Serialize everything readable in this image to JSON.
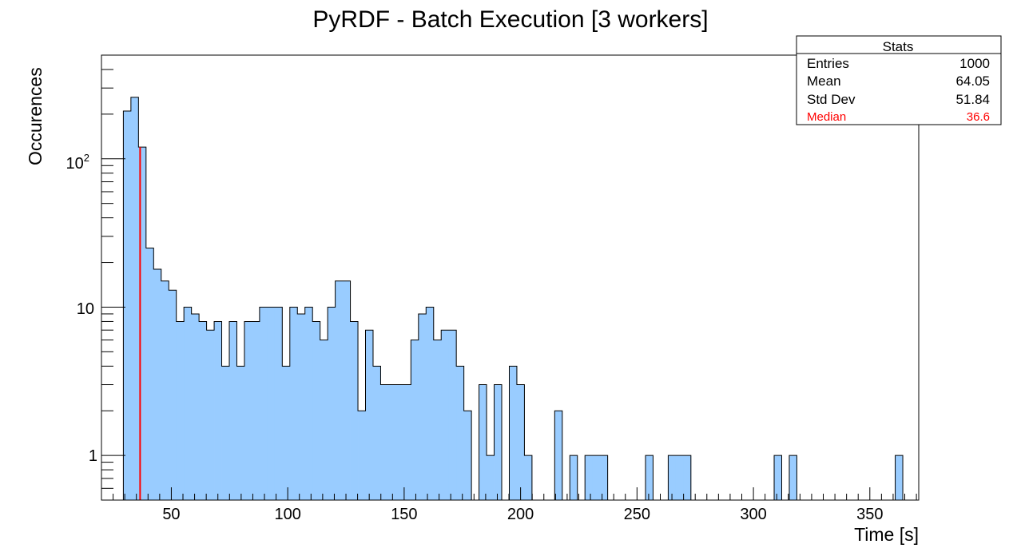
{
  "chart_data": {
    "type": "bar",
    "subtype": "histogram",
    "title": "PyRDF - Batch Execution [3 workers]",
    "xlabel": "Time [s]",
    "ylabel": "Occurences",
    "xlim": [
      20,
      371
    ],
    "ylim": [
      0.5,
      500
    ],
    "y_scale": "log",
    "bin_width": 3.25,
    "x_ticks": [
      50,
      100,
      150,
      200,
      250,
      300,
      350
    ],
    "x_tick_labels": [
      "50",
      "100",
      "150",
      "200",
      "250",
      "300",
      "350"
    ],
    "y_tick_labels": {
      "1": "1",
      "10": "10",
      "100": "10",
      "100_sup": "2"
    },
    "bins_x_start": [
      29.4,
      32.65,
      35.9,
      39.15,
      42.4,
      45.65,
      48.9,
      52.15,
      55.4,
      58.65,
      61.9,
      65.15,
      68.4,
      71.65,
      74.9,
      78.15,
      81.4,
      84.65,
      87.9,
      91.15,
      94.4,
      97.65,
      100.9,
      104.15,
      107.4,
      110.65,
      113.9,
      117.15,
      120.4,
      123.65,
      126.9,
      130.15,
      133.4,
      136.65,
      139.9,
      143.15,
      146.4,
      149.65,
      152.9,
      156.15,
      159.4,
      162.65,
      165.9,
      169.15,
      172.4,
      175.65,
      178.9,
      182.15,
      185.4,
      188.65,
      191.9,
      195.15,
      198.4,
      201.65,
      204.9,
      208.15,
      211.4,
      214.65,
      217.9,
      221.15,
      224.4,
      227.65,
      230.9,
      234.15,
      237.4,
      240.65,
      243.9,
      247.15,
      250.4,
      253.65,
      256.9,
      260.15,
      263.4,
      266.65,
      269.9,
      273.15,
      276.4,
      279.65,
      282.9,
      286.15,
      289.4,
      292.65,
      295.9,
      299.15,
      302.4,
      305.65,
      308.9,
      312.15,
      315.4,
      318.65,
      321.9,
      325.15,
      328.4,
      331.65,
      334.9,
      338.15,
      341.4,
      344.65,
      347.9,
      351.15,
      354.4,
      357.65,
      360.9
    ],
    "values": [
      210,
      260,
      120,
      25,
      18,
      15,
      13,
      8,
      10,
      9,
      8,
      7,
      8,
      4,
      8,
      4,
      8,
      8,
      10,
      10,
      10,
      4,
      10,
      9,
      10,
      8,
      6,
      10,
      15,
      15,
      8,
      2,
      7,
      4,
      3,
      3,
      3,
      3,
      6,
      9,
      10,
      6,
      7,
      7,
      4,
      2,
      0,
      3,
      1,
      3,
      0,
      4,
      3,
      1,
      0,
      0,
      0,
      2,
      0,
      1,
      0,
      1,
      1,
      1,
      0,
      0,
      0,
      0,
      0,
      1,
      0,
      0,
      1,
      1,
      1,
      0,
      0,
      0,
      0,
      0,
      0,
      0,
      0,
      0,
      0,
      0,
      1,
      0,
      1,
      0,
      0,
      0,
      0,
      0,
      0,
      0,
      0,
      0,
      0,
      0,
      0,
      0,
      1
    ],
    "median_value": 36.6,
    "fill_color": "#99ccff",
    "line_color": "#000000",
    "median_line_color": "#ff0000"
  },
  "stats": {
    "title": "Stats",
    "entries_label": "Entries",
    "entries_value": "1000",
    "mean_label": "Mean",
    "mean_value": "64.05",
    "stddev_label": "Std Dev",
    "stddev_value": "51.84",
    "median_label": "Median",
    "median_value": "36.6"
  }
}
